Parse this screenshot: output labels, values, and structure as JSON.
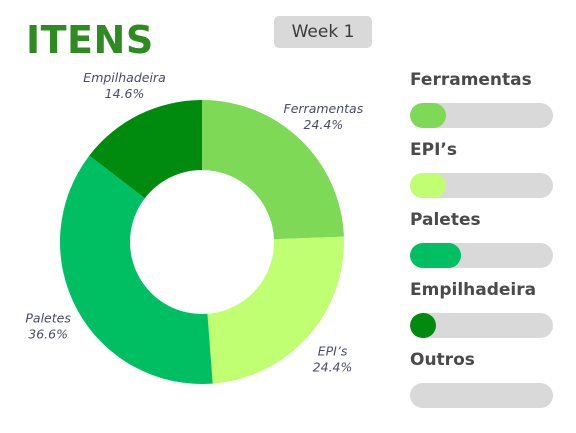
{
  "header": {
    "title": "ITENS",
    "week_label": "Week 1"
  },
  "chart_data": {
    "type": "pie",
    "donut": true,
    "title": "ITENS",
    "slices": [
      {
        "name": "Ferramentas",
        "value": 24.4,
        "label": "24.4%",
        "color": "#7ed957"
      },
      {
        "name": "EPI’s",
        "value": 24.4,
        "label": "24.4%",
        "color": "#c1ff72"
      },
      {
        "name": "Paletes",
        "value": 36.6,
        "label": "36.6%",
        "color": "#00bf63"
      },
      {
        "name": "Empilhadeira",
        "value": 14.6,
        "label": "14.6%",
        "color": "#008a0e"
      }
    ]
  },
  "legend": {
    "items": [
      {
        "name": "Ferramentas",
        "color": "#7ed957",
        "fill_fraction": 0.25
      },
      {
        "name": "EPI’s",
        "color": "#c1ff72",
        "fill_fraction": 0.25
      },
      {
        "name": "Paletes",
        "color": "#00bf63",
        "fill_fraction": 0.36
      },
      {
        "name": "Empilhadeira",
        "color": "#008a0e",
        "fill_fraction": 0.18
      },
      {
        "name": "Outros",
        "color": "#d9d9d9",
        "fill_fraction": 0
      }
    ]
  }
}
